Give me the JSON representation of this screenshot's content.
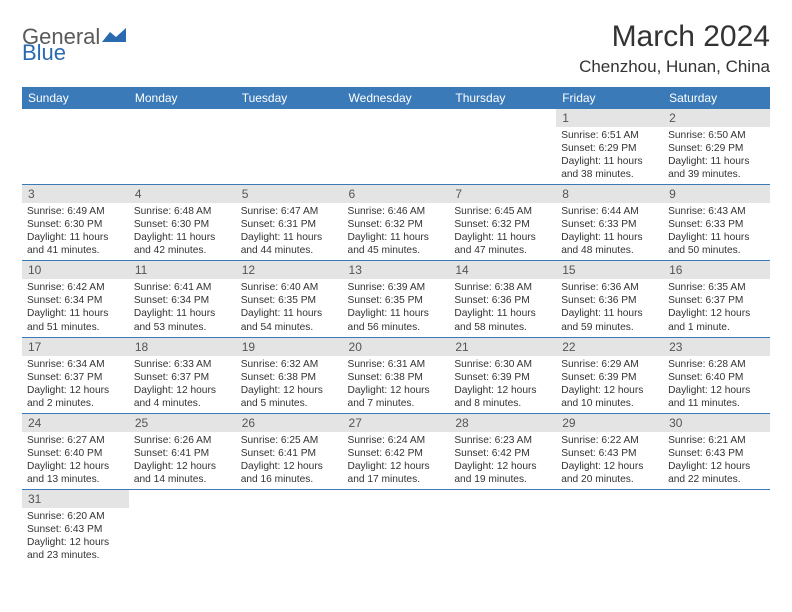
{
  "logo": {
    "word1": "General",
    "word2": "Blue"
  },
  "title": "March 2024",
  "location": "Chenzhou, Hunan, China",
  "colors": {
    "header_bg": "#3a7ab8",
    "header_text": "#ffffff",
    "daynum_bg": "#e4e4e4",
    "daynum_text": "#555555",
    "body_text": "#333333",
    "logo_gray": "#5a5a5a",
    "logo_blue": "#2a6bb0",
    "row_border": "#3a7ab8"
  },
  "weekdays": [
    "Sunday",
    "Monday",
    "Tuesday",
    "Wednesday",
    "Thursday",
    "Friday",
    "Saturday"
  ],
  "days": [
    {
      "n": 1,
      "sunrise": "6:51 AM",
      "sunset": "6:29 PM",
      "daylight": "11 hours and 38 minutes."
    },
    {
      "n": 2,
      "sunrise": "6:50 AM",
      "sunset": "6:29 PM",
      "daylight": "11 hours and 39 minutes."
    },
    {
      "n": 3,
      "sunrise": "6:49 AM",
      "sunset": "6:30 PM",
      "daylight": "11 hours and 41 minutes."
    },
    {
      "n": 4,
      "sunrise": "6:48 AM",
      "sunset": "6:30 PM",
      "daylight": "11 hours and 42 minutes."
    },
    {
      "n": 5,
      "sunrise": "6:47 AM",
      "sunset": "6:31 PM",
      "daylight": "11 hours and 44 minutes."
    },
    {
      "n": 6,
      "sunrise": "6:46 AM",
      "sunset": "6:32 PM",
      "daylight": "11 hours and 45 minutes."
    },
    {
      "n": 7,
      "sunrise": "6:45 AM",
      "sunset": "6:32 PM",
      "daylight": "11 hours and 47 minutes."
    },
    {
      "n": 8,
      "sunrise": "6:44 AM",
      "sunset": "6:33 PM",
      "daylight": "11 hours and 48 minutes."
    },
    {
      "n": 9,
      "sunrise": "6:43 AM",
      "sunset": "6:33 PM",
      "daylight": "11 hours and 50 minutes."
    },
    {
      "n": 10,
      "sunrise": "6:42 AM",
      "sunset": "6:34 PM",
      "daylight": "11 hours and 51 minutes."
    },
    {
      "n": 11,
      "sunrise": "6:41 AM",
      "sunset": "6:34 PM",
      "daylight": "11 hours and 53 minutes."
    },
    {
      "n": 12,
      "sunrise": "6:40 AM",
      "sunset": "6:35 PM",
      "daylight": "11 hours and 54 minutes."
    },
    {
      "n": 13,
      "sunrise": "6:39 AM",
      "sunset": "6:35 PM",
      "daylight": "11 hours and 56 minutes."
    },
    {
      "n": 14,
      "sunrise": "6:38 AM",
      "sunset": "6:36 PM",
      "daylight": "11 hours and 58 minutes."
    },
    {
      "n": 15,
      "sunrise": "6:36 AM",
      "sunset": "6:36 PM",
      "daylight": "11 hours and 59 minutes."
    },
    {
      "n": 16,
      "sunrise": "6:35 AM",
      "sunset": "6:37 PM",
      "daylight": "12 hours and 1 minute."
    },
    {
      "n": 17,
      "sunrise": "6:34 AM",
      "sunset": "6:37 PM",
      "daylight": "12 hours and 2 minutes."
    },
    {
      "n": 18,
      "sunrise": "6:33 AM",
      "sunset": "6:37 PM",
      "daylight": "12 hours and 4 minutes."
    },
    {
      "n": 19,
      "sunrise": "6:32 AM",
      "sunset": "6:38 PM",
      "daylight": "12 hours and 5 minutes."
    },
    {
      "n": 20,
      "sunrise": "6:31 AM",
      "sunset": "6:38 PM",
      "daylight": "12 hours and 7 minutes."
    },
    {
      "n": 21,
      "sunrise": "6:30 AM",
      "sunset": "6:39 PM",
      "daylight": "12 hours and 8 minutes."
    },
    {
      "n": 22,
      "sunrise": "6:29 AM",
      "sunset": "6:39 PM",
      "daylight": "12 hours and 10 minutes."
    },
    {
      "n": 23,
      "sunrise": "6:28 AM",
      "sunset": "6:40 PM",
      "daylight": "12 hours and 11 minutes."
    },
    {
      "n": 24,
      "sunrise": "6:27 AM",
      "sunset": "6:40 PM",
      "daylight": "12 hours and 13 minutes."
    },
    {
      "n": 25,
      "sunrise": "6:26 AM",
      "sunset": "6:41 PM",
      "daylight": "12 hours and 14 minutes."
    },
    {
      "n": 26,
      "sunrise": "6:25 AM",
      "sunset": "6:41 PM",
      "daylight": "12 hours and 16 minutes."
    },
    {
      "n": 27,
      "sunrise": "6:24 AM",
      "sunset": "6:42 PM",
      "daylight": "12 hours and 17 minutes."
    },
    {
      "n": 28,
      "sunrise": "6:23 AM",
      "sunset": "6:42 PM",
      "daylight": "12 hours and 19 minutes."
    },
    {
      "n": 29,
      "sunrise": "6:22 AM",
      "sunset": "6:43 PM",
      "daylight": "12 hours and 20 minutes."
    },
    {
      "n": 30,
      "sunrise": "6:21 AM",
      "sunset": "6:43 PM",
      "daylight": "12 hours and 22 minutes."
    },
    {
      "n": 31,
      "sunrise": "6:20 AM",
      "sunset": "6:43 PM",
      "daylight": "12 hours and 23 minutes."
    }
  ],
  "labels": {
    "sunrise": "Sunrise:",
    "sunset": "Sunset:",
    "daylight": "Daylight:"
  },
  "layout": {
    "leading_blanks": 5,
    "total_cells": 42
  }
}
